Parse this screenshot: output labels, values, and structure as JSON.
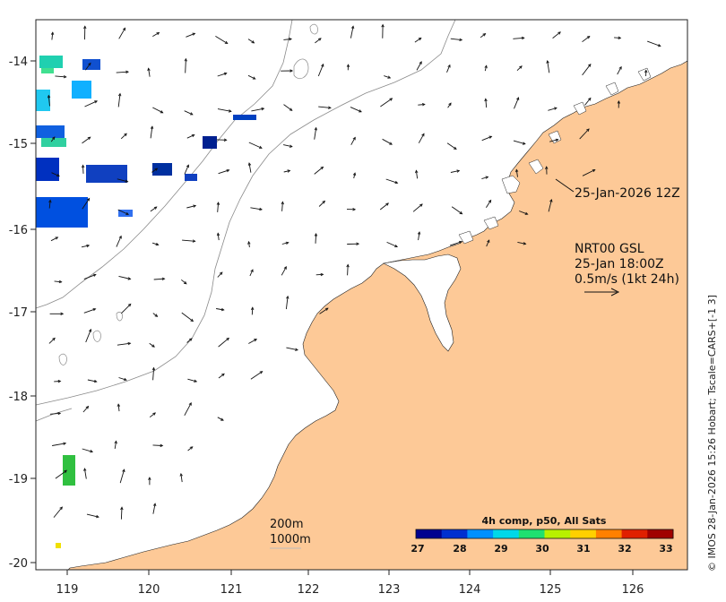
{
  "map": {
    "lon_range": [
      118.6,
      126.7
    ],
    "lat_range": [
      -20.1,
      -13.5
    ],
    "x_ticks": [
      "119",
      "120",
      "121",
      "122",
      "123",
      "124",
      "125",
      "126"
    ],
    "y_ticks": [
      "-14",
      "-15",
      "-16",
      "-17",
      "-18",
      "-19",
      "-20"
    ],
    "land_color": "#fdc997",
    "ocean_color": "#ffffff",
    "isobath_color": "#8a8a8a"
  },
  "annotations": {
    "time_label": "25-Jan-2026 12Z",
    "product": "NRT00 GSL",
    "datetime": "25-Jan 18:00Z",
    "vector_scale": "0.5m/s (1kt 24h)",
    "isobath_200": "200m",
    "isobath_1000": "1000m"
  },
  "colorbar": {
    "title": "4h comp, p50, All Sats",
    "ticks": [
      "27",
      "28",
      "29",
      "30",
      "31",
      "32",
      "33"
    ],
    "colors": [
      "#00008f",
      "#0030d0",
      "#0090ff",
      "#00d8e8",
      "#20e070",
      "#b8f000",
      "#ffd000",
      "#ff8000",
      "#e02000",
      "#a00000"
    ]
  },
  "credit": "© IMOS 28-Jan-2026 15:26 Hobart; Tscale=CARS+[-1 3]",
  "icons": [
    "current-vector-arrow",
    "scale-arrow-icon"
  ]
}
